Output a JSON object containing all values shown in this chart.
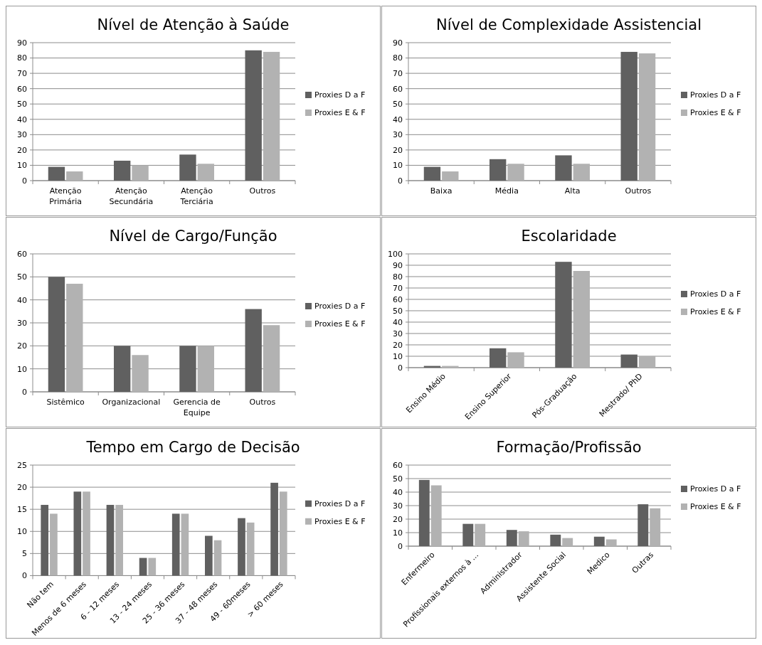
{
  "chart_data": [
    {
      "type": "bar",
      "title": "Nível de Atenção à Saúde",
      "categories": [
        "Atenção Primária",
        "Atenção Secundária",
        "Atenção Terciária",
        "Outros"
      ],
      "series": [
        {
          "name": "Proxies D a F",
          "color": "#606060",
          "values": [
            9,
            13,
            17,
            85
          ]
        },
        {
          "name": "Proxies E & F",
          "color": "#b2b2b2",
          "values": [
            6,
            10,
            11,
            84
          ]
        }
      ],
      "ylim": [
        0,
        90
      ],
      "yticks": [
        0,
        10,
        20,
        30,
        40,
        50,
        60,
        70,
        80,
        90
      ],
      "grid": "y",
      "legend": "right"
    },
    {
      "type": "bar",
      "title": "Nível de Complexidade Assistencial",
      "categories": [
        "Baixa",
        "Média",
        "Alta",
        "Outros"
      ],
      "series": [
        {
          "name": "Proxies D a F",
          "color": "#606060",
          "values": [
            9,
            14,
            16.5,
            84
          ]
        },
        {
          "name": "Proxies E & F",
          "color": "#b2b2b2",
          "values": [
            6,
            11,
            11,
            83
          ]
        }
      ],
      "ylim": [
        0,
        90
      ],
      "yticks": [
        0,
        10,
        20,
        30,
        40,
        50,
        60,
        70,
        80,
        90
      ],
      "grid": "y",
      "legend": "right"
    },
    {
      "type": "bar",
      "title": "Nível de Cargo/Função",
      "categories": [
        "Sistêmico",
        "Organizacional",
        "Gerencia de Equipe",
        "Outros"
      ],
      "series": [
        {
          "name": "Proxies D a F",
          "color": "#606060",
          "values": [
            50,
            20,
            20,
            36
          ]
        },
        {
          "name": "Proxies E & F",
          "color": "#b2b2b2",
          "values": [
            47,
            16,
            20,
            29
          ]
        }
      ],
      "ylim": [
        0,
        60
      ],
      "yticks": [
        0,
        10,
        20,
        30,
        40,
        50,
        60
      ],
      "grid": "y",
      "legend": "right"
    },
    {
      "type": "bar",
      "title": "Escolaridade",
      "categories": [
        "Ensino Médio",
        "Ensino Superior",
        "Pós-Graduação",
        "Mestrado/ PhD"
      ],
      "series": [
        {
          "name": "Proxies D a F",
          "color": "#606060",
          "values": [
            1.5,
            17,
            93,
            11.5
          ]
        },
        {
          "name": "Proxies E & F",
          "color": "#b2b2b2",
          "values": [
            1.5,
            13.5,
            85,
            10
          ]
        }
      ],
      "ylim": [
        0,
        100
      ],
      "yticks": [
        0,
        10,
        20,
        30,
        40,
        50,
        60,
        70,
        80,
        90,
        100
      ],
      "grid": "y",
      "legend": "right"
    },
    {
      "type": "bar",
      "title": "Tempo em Cargo de Decisão",
      "categories": [
        "Não tem",
        "Menos de 6 meses",
        "6 - 12 meses",
        "13 - 24 meses",
        "25 - 36 meses",
        "37 - 48 meses",
        "49 - 60meses",
        "> 60 meses"
      ],
      "series": [
        {
          "name": "Proxies D a F",
          "color": "#606060",
          "values": [
            16,
            19,
            16,
            4,
            14,
            9,
            13,
            21
          ]
        },
        {
          "name": "Proxies E & F",
          "color": "#b2b2b2",
          "values": [
            14,
            19,
            16,
            4,
            14,
            8,
            12,
            19
          ]
        }
      ],
      "ylim": [
        0,
        25
      ],
      "yticks": [
        0,
        5,
        10,
        15,
        20,
        25
      ],
      "grid": "y",
      "legend": "right"
    },
    {
      "type": "bar",
      "title": "Formação/Profissão",
      "categories": [
        "Enfermeiro",
        "Profissionais externos à ...",
        "Administrador",
        "Assistente Social",
        "Medico",
        "Outras"
      ],
      "series": [
        {
          "name": "Proxies D a F",
          "color": "#606060",
          "values": [
            49,
            16.5,
            12,
            8.5,
            7,
            31
          ]
        },
        {
          "name": "Proxies E & F",
          "color": "#b2b2b2",
          "values": [
            45,
            16.5,
            11,
            6,
            5,
            28
          ]
        }
      ],
      "ylim": [
        0,
        60
      ],
      "yticks": [
        0,
        10,
        20,
        30,
        40,
        50,
        60
      ],
      "grid": "y",
      "legend": "right"
    }
  ]
}
